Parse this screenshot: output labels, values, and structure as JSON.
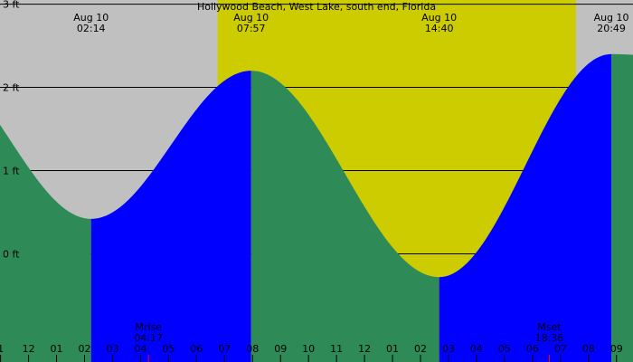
{
  "chart_data": {
    "type": "area",
    "title": "Hollywood Beach, West Lake, south end, Florida",
    "colors": {
      "night": "#c0c0c0",
      "day": "#cccc00",
      "rising": "#0000ff",
      "falling": "#2e8b57",
      "grid": "#000000",
      "moon_tick": "#ff0000"
    },
    "y_unit": "ft",
    "ylim": [
      -1.3,
      3.05
    ],
    "y_ticks": [
      {
        "value": 3,
        "label": "3 ft"
      },
      {
        "value": 2,
        "label": "2 ft"
      },
      {
        "value": 1,
        "label": "1 ft"
      },
      {
        "value": 0,
        "label": "0 ft"
      }
    ],
    "xlim": [
      0.98,
      23.59
    ],
    "x_ticks": [
      {
        "hour": 1,
        "label": "1"
      },
      {
        "hour": 2,
        "label": "12"
      },
      {
        "hour": 3,
        "label": "01"
      },
      {
        "hour": 4,
        "label": "02"
      },
      {
        "hour": 5,
        "label": "03"
      },
      {
        "hour": 6,
        "label": "04"
      },
      {
        "hour": 7,
        "label": "05"
      },
      {
        "hour": 8,
        "label": "06"
      },
      {
        "hour": 9,
        "label": "07"
      },
      {
        "hour": 10,
        "label": "08"
      },
      {
        "hour": 11,
        "label": "09"
      },
      {
        "hour": 12,
        "label": "10"
      },
      {
        "hour": 13,
        "label": "11"
      },
      {
        "hour": 14,
        "label": "12"
      },
      {
        "hour": 15,
        "label": "01"
      },
      {
        "hour": 16,
        "label": "02"
      },
      {
        "hour": 17,
        "label": "03"
      },
      {
        "hour": 18,
        "label": "04"
      },
      {
        "hour": 19,
        "label": "05"
      },
      {
        "hour": 20,
        "label": "06"
      },
      {
        "hour": 21,
        "label": "07"
      },
      {
        "hour": 22,
        "label": "08"
      },
      {
        "hour": 23,
        "label": "09"
      }
    ],
    "daylight": {
      "start": 8.75,
      "end": 21.55
    },
    "tide_events": [
      {
        "type": "low",
        "date": "Aug 10",
        "time": "02:14",
        "hour": 4.233,
        "height": 0.42
      },
      {
        "type": "high",
        "date": "Aug 10",
        "time": "07:57",
        "hour": 9.95,
        "height": 2.2
      },
      {
        "type": "low",
        "date": "Aug 10",
        "time": "14:40",
        "hour": 16.667,
        "height": -0.28
      },
      {
        "type": "high",
        "date": "Aug 10",
        "time": "20:49",
        "hour": 22.817,
        "height": 2.4
      }
    ],
    "start_height": 1.35,
    "end_height": 2.3,
    "moon": [
      {
        "label": "Mrise",
        "time": "04:17",
        "hour": 6.283
      },
      {
        "label": "Mset",
        "time": "18:36",
        "hour": 20.6
      }
    ]
  }
}
